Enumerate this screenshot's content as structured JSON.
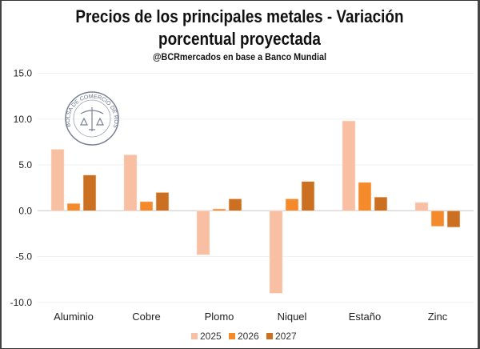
{
  "chart_data": {
    "type": "bar",
    "title": "Precios de los principales metales - Variación porcentual proyectada",
    "subtitle": "@BCRmercados en base a Banco Mundial",
    "categories": [
      "Aluminio",
      "Cobre",
      "Plomo",
      "Niquel",
      "Estaño",
      "Zinc"
    ],
    "series": [
      {
        "name": "2025",
        "color": "#F8BFA2",
        "values": [
          6.7,
          6.1,
          -4.8,
          -9.0,
          9.8,
          0.9
        ]
      },
      {
        "name": "2026",
        "color": "#F58A2A",
        "values": [
          0.8,
          1.0,
          0.2,
          1.3,
          3.1,
          -1.7
        ]
      },
      {
        "name": "2027",
        "color": "#CB7020",
        "values": [
          3.9,
          2.0,
          1.3,
          3.2,
          1.5,
          -1.8
        ]
      }
    ],
    "yticks": [
      "15.0",
      "10.0",
      "5.0",
      "0.0",
      "-5.0",
      "-10.0"
    ],
    "ylim": [
      -10,
      15
    ],
    "grid": true,
    "legend": "bottom",
    "logo_text": "BOLSA DE COMERCIO DE ROSARIO"
  }
}
